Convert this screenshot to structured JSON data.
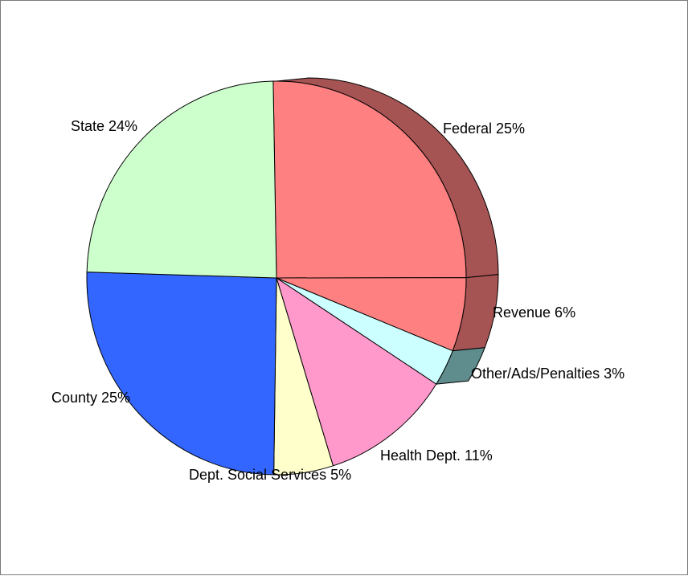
{
  "chart_data": {
    "type": "pie",
    "title": "",
    "style": "3d",
    "slices": [
      {
        "label": "Federal",
        "value": 25,
        "text": "Federal 25%",
        "color": "#ff8080"
      },
      {
        "label": "Revenue",
        "value": 6,
        "text": "Revenue 6%",
        "color": "#ff8080"
      },
      {
        "label": "Other/Ads/Penalties",
        "value": 3,
        "text": "Other/Ads/Penalties 3%",
        "color": "#ccffff"
      },
      {
        "label": "Health Dept.",
        "value": 11,
        "text": "Health Dept. 11%",
        "color": "#ff99cc"
      },
      {
        "label": "Dept. Social Services",
        "value": 5,
        "text": "Dept. Social Services 5%",
        "color": "#ffffcc"
      },
      {
        "label": "County",
        "value": 25,
        "text": "County 25%",
        "color": "#3366ff"
      },
      {
        "label": "State",
        "value": 24,
        "text": "State 24%",
        "color": "#ccffcc"
      }
    ],
    "side_colors": {
      "Federal": "#a65353",
      "Revenue": "#a65353",
      "Other/Ads/Penalties": "#5f8c8c"
    },
    "outline_color": "#000000"
  }
}
